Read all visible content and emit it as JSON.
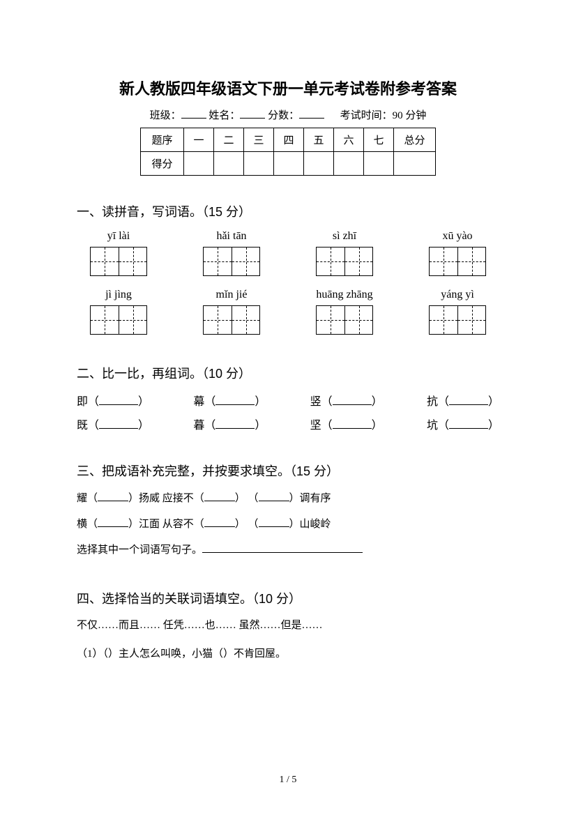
{
  "title": "新人教版四年级语文下册一单元考试卷附参考答案",
  "header": {
    "class_label": "班级：",
    "name_label": "姓名：",
    "score_label": "分数：",
    "time_label": "考试时间：90 分钟"
  },
  "score_table": {
    "row1_label": "题序",
    "cols": [
      "一",
      "二",
      "三",
      "四",
      "五",
      "六",
      "七"
    ],
    "total_label": "总分",
    "row2_label": "得分"
  },
  "section1": {
    "heading": "一、读拼音，写词语。（15 分）",
    "row1": [
      "yī  lài",
      "hǎi tān",
      "sì zhī",
      "xū yào"
    ],
    "row2": [
      "jì  jìng",
      "mǐn jié",
      "huāng zhāng",
      "yáng yì"
    ]
  },
  "section2": {
    "heading": "二、比一比，再组词。（10 分）",
    "pairs": [
      [
        "即",
        "幕",
        "竖",
        "抗"
      ],
      [
        "既",
        "暮",
        "坚",
        "坑"
      ]
    ]
  },
  "section3": {
    "heading": "三、把成语补充完整，并按要求填空。（15 分）",
    "line1_a": "耀（",
    "line1_b": "）扬威  应接不（",
    "line1_c": "）  （",
    "line1_d": "）调有序",
    "line2_a": "横（",
    "line2_b": "）江面  从容不（",
    "line2_c": "）  （",
    "line2_d": "）山峻岭",
    "line3": "选择其中一个词语写句子。"
  },
  "section4": {
    "heading": "四、选择恰当的关联词语填空。（10 分）",
    "options": "不仅……而且……      任凭……也……      虽然……但是……",
    "q1_a": "（1）（",
    "q1_b": "）主人怎么叫唤，小猫（",
    "q1_c": "）不肯回屋。"
  },
  "footer": {
    "page": "1 / 5"
  }
}
